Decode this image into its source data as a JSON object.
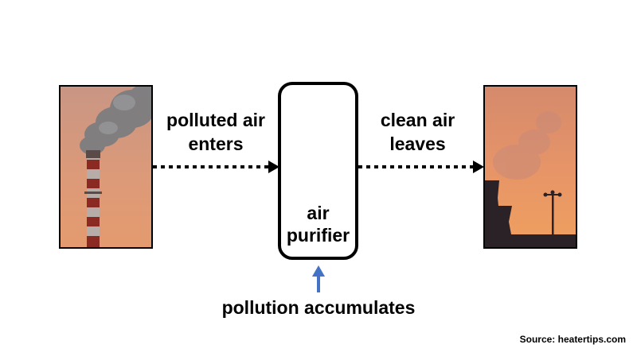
{
  "labels": {
    "polluted_line1": "polluted air",
    "polluted_line2": "enters",
    "clean_line1": "clean air",
    "clean_line2": "leaves",
    "purifier_line1": "air",
    "purifier_line2": "purifier",
    "accumulates": "pollution accumulates"
  },
  "source": "Source: heatertips.com",
  "colors": {
    "arrow_blue": "#4472c4",
    "sky_orange": "#d9906e",
    "stack_red": "#8b2a22"
  },
  "icons": {
    "left_photo": "smokestack-photo",
    "right_photo": "hazy-skyline-photo"
  }
}
